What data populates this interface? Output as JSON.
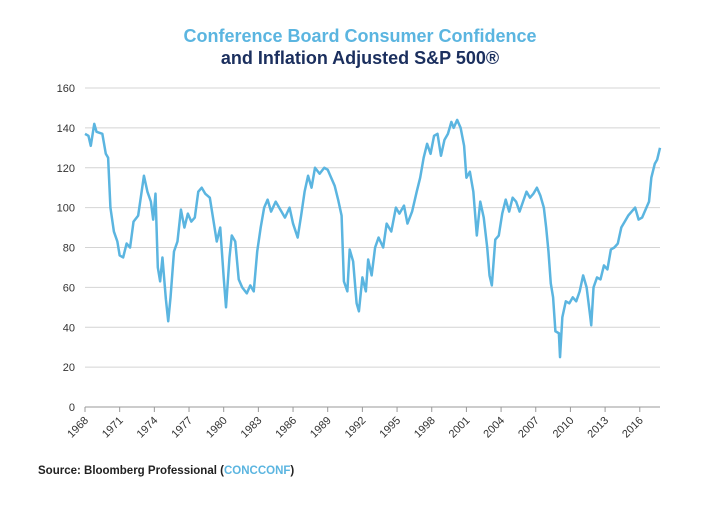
{
  "chart_data": {
    "type": "line",
    "title": "Conference Board Consumer Confidence",
    "subtitle": "and Inflation Adjusted S&P 500®",
    "source": {
      "prefix": "Source: Bloomberg Professional (",
      "link": "CONCCONF",
      "suffix": ")"
    },
    "x": [
      1968.0,
      1968.3,
      1968.5,
      1968.8,
      1969.0,
      1969.5,
      1969.8,
      1970.0,
      1970.2,
      1970.5,
      1970.8,
      1971.0,
      1971.3,
      1971.6,
      1971.9,
      1972.2,
      1972.6,
      1972.9,
      1973.1,
      1973.4,
      1973.7,
      1973.9,
      1974.1,
      1974.3,
      1974.5,
      1974.7,
      1975.0,
      1975.2,
      1975.4,
      1975.7,
      1976.0,
      1976.3,
      1976.6,
      1976.9,
      1977.2,
      1977.5,
      1977.8,
      1978.1,
      1978.4,
      1978.8,
      1979.1,
      1979.4,
      1979.7,
      1980.0,
      1980.2,
      1980.5,
      1980.7,
      1981.0,
      1981.3,
      1981.6,
      1982.0,
      1982.3,
      1982.6,
      1982.9,
      1983.2,
      1983.5,
      1983.8,
      1984.1,
      1984.5,
      1984.9,
      1985.3,
      1985.7,
      1986.0,
      1986.4,
      1986.7,
      1987.0,
      1987.3,
      1987.6,
      1987.9,
      1988.3,
      1988.7,
      1989.0,
      1989.3,
      1989.6,
      1989.9,
      1990.2,
      1990.4,
      1990.7,
      1990.9,
      1991.2,
      1991.5,
      1991.7,
      1992.0,
      1992.3,
      1992.5,
      1992.8,
      1993.1,
      1993.4,
      1993.8,
      1994.1,
      1994.5,
      1994.9,
      1995.2,
      1995.6,
      1995.9,
      1996.3,
      1996.7,
      1997.0,
      1997.3,
      1997.6,
      1997.9,
      1998.2,
      1998.5,
      1998.8,
      1999.1,
      1999.4,
      1999.7,
      1999.9,
      2000.2,
      2000.5,
      2000.8,
      2001.0,
      2001.3,
      2001.6,
      2001.9,
      2002.2,
      2002.5,
      2002.8,
      2003.0,
      2003.2,
      2003.5,
      2003.8,
      2004.1,
      2004.4,
      2004.7,
      2005.0,
      2005.3,
      2005.6,
      2005.9,
      2006.2,
      2006.5,
      2006.8,
      2007.1,
      2007.4,
      2007.7,
      2007.9,
      2008.1,
      2008.3,
      2008.5,
      2008.7,
      2009.0,
      2009.1,
      2009.3,
      2009.6,
      2009.9,
      2010.2,
      2010.5,
      2010.8,
      2011.1,
      2011.4,
      2011.7,
      2011.8,
      2012.0,
      2012.3,
      2012.6,
      2012.9,
      2013.2,
      2013.5,
      2013.8,
      2014.1,
      2014.4,
      2014.7,
      2015.0,
      2015.3,
      2015.6,
      2015.9,
      2016.2,
      2016.5,
      2016.8,
      2017.0,
      2017.3,
      2017.5,
      2017.75
    ],
    "series": [
      {
        "color": "#5bb5e0",
        "values": [
          137,
          136,
          131,
          142,
          138,
          137,
          127,
          125,
          100,
          88,
          83,
          76,
          75,
          82,
          80,
          93,
          96,
          108,
          116,
          108,
          103,
          94,
          107,
          70,
          63,
          75,
          54,
          43,
          55,
          78,
          83,
          99,
          90,
          97,
          93,
          95,
          108,
          110,
          107,
          105,
          94,
          83,
          90,
          65,
          50,
          75,
          86,
          83,
          64,
          60,
          57,
          61,
          58,
          78,
          90,
          100,
          104,
          98,
          103,
          99,
          95,
          100,
          92,
          85,
          96,
          108,
          116,
          110,
          120,
          117,
          120,
          119,
          115,
          111,
          104,
          96,
          63,
          58,
          79,
          73,
          52,
          48,
          65,
          58,
          74,
          66,
          80,
          85,
          80,
          92,
          88,
          100,
          97,
          101,
          92,
          98,
          108,
          115,
          125,
          132,
          127,
          136,
          137,
          126,
          134,
          137,
          143,
          140,
          144,
          140,
          131,
          115,
          118,
          108,
          86,
          103,
          95,
          80,
          66,
          61,
          84,
          86,
          97,
          104,
          98,
          105,
          103,
          98,
          103,
          108,
          105,
          107,
          110,
          106,
          100,
          90,
          78,
          62,
          55,
          38,
          37,
          25,
          45,
          53,
          52,
          55,
          53,
          58,
          66,
          60,
          46,
          41,
          60,
          65,
          64,
          71,
          69,
          79,
          80,
          82,
          90,
          93,
          96,
          98,
          100,
          94,
          95,
          99,
          103,
          115,
          122,
          124,
          130
        ]
      }
    ],
    "xlim": [
      1968,
      2017.75
    ],
    "xticks": [
      1968,
      1971,
      1974,
      1977,
      1980,
      1983,
      1986,
      1989,
      1992,
      1995,
      1998,
      2001,
      2004,
      2007,
      2010,
      2013,
      2016
    ],
    "ylim": [
      0,
      160
    ],
    "yticks": [
      0,
      20,
      40,
      60,
      80,
      100,
      120,
      140,
      160
    ],
    "grid": true,
    "title_color": "#5bb5e0",
    "subtitle_color": "#1b2f5e"
  }
}
